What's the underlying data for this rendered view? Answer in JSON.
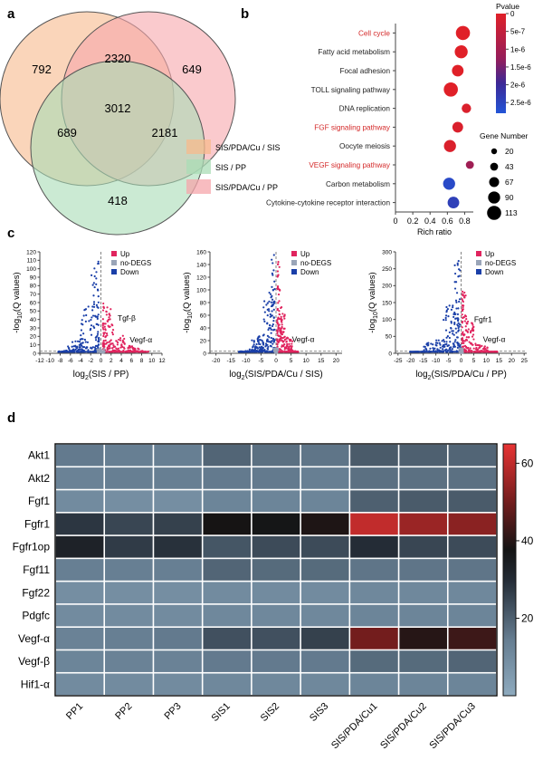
{
  "panels": {
    "a": "a",
    "b": "b",
    "c": "c",
    "d": "d"
  },
  "chart_data": [
    {
      "type": "venn",
      "panel": "a",
      "regions": {
        "a_only": 792,
        "b_only": 649,
        "c_only": 418,
        "ab_only": 2320,
        "ac_only": 689,
        "bc_only": 2181,
        "abc": 3012
      },
      "sets": [
        {
          "name": "SIS/PDA/Cu / SIS",
          "color": "#f7b98c"
        },
        {
          "name": "SIS / PP",
          "color": "#a9dcb5"
        },
        {
          "name": "SIS/PDA/Cu / PP",
          "color": "#f6a6ab"
        }
      ]
    },
    {
      "type": "scatter",
      "panel": "b",
      "categories": [
        "Cell cycle",
        "Fatty acid metabolism",
        "Focal adhesion",
        "TOLL signaling pathway",
        "DNA replication",
        "FGF signaling pathway",
        "Oocyte meiosis",
        "VEGF signaling pathway",
        "Carbon metabolism",
        "Cytokine-cytokine receptor interaction"
      ],
      "highlighted": [
        true,
        false,
        false,
        false,
        false,
        true,
        false,
        true,
        false,
        false
      ],
      "rich_ratio": [
        0.78,
        0.76,
        0.72,
        0.64,
        0.82,
        0.72,
        0.63,
        0.86,
        0.62,
        0.67
      ],
      "pvalue": [
        0,
        0,
        0,
        0,
        1e-07,
        1e-07,
        1e-07,
        1.1e-06,
        2.6e-06,
        2.4e-06
      ],
      "gene_number": [
        113,
        100,
        85,
        113,
        60,
        75,
        90,
        45,
        90,
        85
      ],
      "xlabel": "Rich ratio",
      "xticks": [
        "0",
        "0.2",
        "0.4",
        "0.6",
        "0.8"
      ],
      "xlim": [
        0,
        0.9
      ],
      "color_legend": {
        "title": "Pvalue",
        "ticks": [
          "0",
          "5e-7",
          "1e-6",
          "1.5e-6",
          "2e-6",
          "2.5e-6"
        ],
        "range": [
          0,
          2.8e-06
        ]
      },
      "size_legend": {
        "title": "Gene Number",
        "values": [
          "20",
          "43",
          "67",
          "90",
          "113"
        ]
      }
    },
    {
      "type": "scatter",
      "panel": "c",
      "subplots": [
        {
          "xlabel_base": "log",
          "xlabel_sub": "2",
          "xlabel_rest": "(SIS / PP)",
          "xticks": [
            "-12",
            "-10",
            "-8",
            "-6",
            "-4",
            "-2",
            "0",
            "2",
            "4",
            "6",
            "8",
            "10",
            "12"
          ],
          "xlim": [
            -12,
            12
          ],
          "yticks": [
            "0",
            "10",
            "20",
            "30",
            "40",
            "50",
            "60",
            "70",
            "80",
            "90",
            "100",
            "110",
            "120"
          ],
          "ylim": [
            0,
            120
          ],
          "annotations": [
            {
              "label": "Tgf-β",
              "x": 2.2,
              "y": 42
            },
            {
              "label": "Vegf-α",
              "x": 4.6,
              "y": 16
            }
          ]
        },
        {
          "xlabel_base": "log",
          "xlabel_sub": "2",
          "xlabel_rest": "(SIS/PDA/Cu / SIS)",
          "xticks": [
            "-20",
            "-15",
            "-10",
            "-5",
            "0",
            "5",
            "10",
            "15",
            "20"
          ],
          "xlim": [
            -22,
            22
          ],
          "yticks": [
            "0",
            "20",
            "40",
            "60",
            "80",
            "100",
            "120",
            "140",
            "160"
          ],
          "ylim": [
            0,
            160
          ],
          "annotations": [
            {
              "label": "Vegf-α",
              "x": 3.5,
              "y": 22
            }
          ]
        },
        {
          "xlabel_base": "log",
          "xlabel_sub": "2",
          "xlabel_rest": "(SIS/PDA/Cu / PP)",
          "xticks": [
            "-25",
            "-20",
            "-15",
            "-10",
            "-5",
            "0",
            "5",
            "10",
            "15",
            "20",
            "25"
          ],
          "xlim": [
            -26,
            26
          ],
          "yticks": [
            "0",
            "50",
            "100",
            "150",
            "200",
            "250",
            "300"
          ],
          "ylim": [
            0,
            300
          ],
          "annotations": [
            {
              "label": "Fgfr1",
              "x": 3.0,
              "y": 100
            },
            {
              "label": "Vegf-α",
              "x": 6.5,
              "y": 42
            }
          ]
        }
      ],
      "ylabel_parts": {
        "prefix": "-log",
        "sub": "10",
        "suffix": "(Q values)"
      },
      "legend": [
        {
          "name": "Up",
          "color": "#e0245e"
        },
        {
          "name": "no-DEGS",
          "color": "#9aa5b8"
        },
        {
          "name": "Down",
          "color": "#1a3fa8"
        }
      ]
    },
    {
      "type": "heatmap",
      "panel": "d",
      "rows": [
        "Akt1",
        "Akt2",
        "Fgf1",
        "Fgfr1",
        "Fgfr1op",
        "Fgf11",
        "Fgf22",
        "Pdgfc",
        "Vegf-α",
        "Vegf-β",
        "Hif1-α"
      ],
      "columns": [
        "PP1",
        "PP2",
        "PP3",
        "SIS1",
        "SIS2",
        "SIS3",
        "SIS/PDA/Cu1",
        "SIS/PDA/Cu2",
        "SIS/PDA/Cu3"
      ],
      "values": [
        [
          15,
          14,
          14,
          19,
          17,
          16,
          21,
          20,
          19
        ],
        [
          13,
          14,
          14,
          15,
          15,
          14,
          17,
          17,
          17
        ],
        [
          10,
          9,
          9,
          12,
          12,
          12,
          20,
          21,
          21
        ],
        [
          28,
          25,
          26,
          38,
          37,
          39,
          60,
          55,
          53
        ],
        [
          33,
          27,
          29,
          22,
          24,
          24,
          30,
          25,
          24
        ],
        [
          14,
          14,
          14,
          19,
          18,
          18,
          16,
          16,
          16
        ],
        [
          9,
          9,
          9,
          10,
          10,
          10,
          11,
          11,
          11
        ],
        [
          10,
          10,
          10,
          11,
          11,
          11,
          12,
          12,
          12
        ],
        [
          13,
          14,
          15,
          23,
          23,
          26,
          50,
          40,
          43
        ],
        [
          12,
          13,
          13,
          15,
          15,
          15,
          18,
          18,
          19
        ],
        [
          10,
          10,
          10,
          11,
          11,
          11,
          12,
          12,
          12
        ]
      ],
      "colorbar_ticks": [
        "20",
        "40",
        "60"
      ],
      "range": [
        0,
        65
      ]
    }
  ]
}
